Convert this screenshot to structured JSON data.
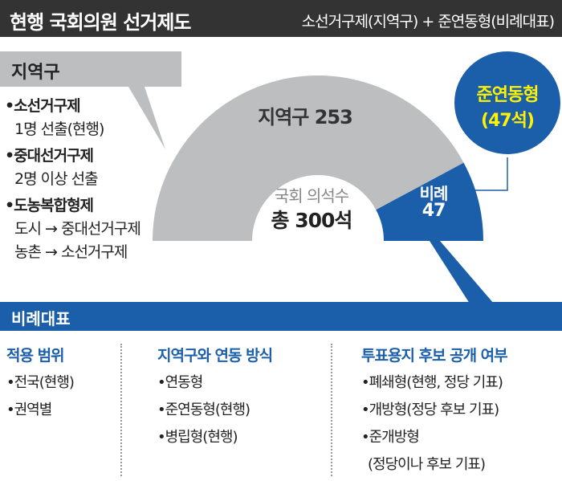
{
  "header": {
    "title": "현행 국회의원 선거제도",
    "subtitle": "소선거구제(지역구) + 준연동형(비례대표)"
  },
  "district_box": {
    "label": "지역구",
    "items": [
      {
        "title": "•소선거구제",
        "desc": [
          "1명 선출(현행)"
        ]
      },
      {
        "title": "•중대선거구제",
        "desc": [
          "2명 이상 선출"
        ]
      },
      {
        "title": "•도농복합형제",
        "desc": [
          "도시 → 중대선거구제",
          "농촌 → 소선거구제"
        ]
      }
    ]
  },
  "chart_data": {
    "type": "pie",
    "style": "half-donut",
    "total_label": "국회 의석수",
    "total_value": "총 300석",
    "total": 300,
    "slices": [
      {
        "name": "지역구",
        "value": 253,
        "label": "지역구 253",
        "color": "#bcbec0"
      },
      {
        "name": "비례",
        "value": 47,
        "label": [
          "비례",
          "47"
        ],
        "color": "#1b5faa"
      }
    ]
  },
  "bubble": {
    "line1": "준연동형",
    "line2": "(47석)",
    "color": "#1b5faa",
    "text_color": "#fff200"
  },
  "proportional": {
    "label": "비례대표",
    "columns": [
      {
        "title": "적용 범위",
        "items": [
          "•전국(현행)",
          "•권역별"
        ]
      },
      {
        "title": "지역구와 연동 방식",
        "items": [
          "•연동형",
          "•준연동형(현행)",
          "•병립형(현행)"
        ]
      },
      {
        "title": "투표용지 후보 공개 여부",
        "items": [
          "•폐쇄형(현행, 정당 기표)",
          "•개방형(정당 후보 기표)",
          "•준개방형",
          "(정당이나 후보 기표)"
        ]
      }
    ]
  }
}
